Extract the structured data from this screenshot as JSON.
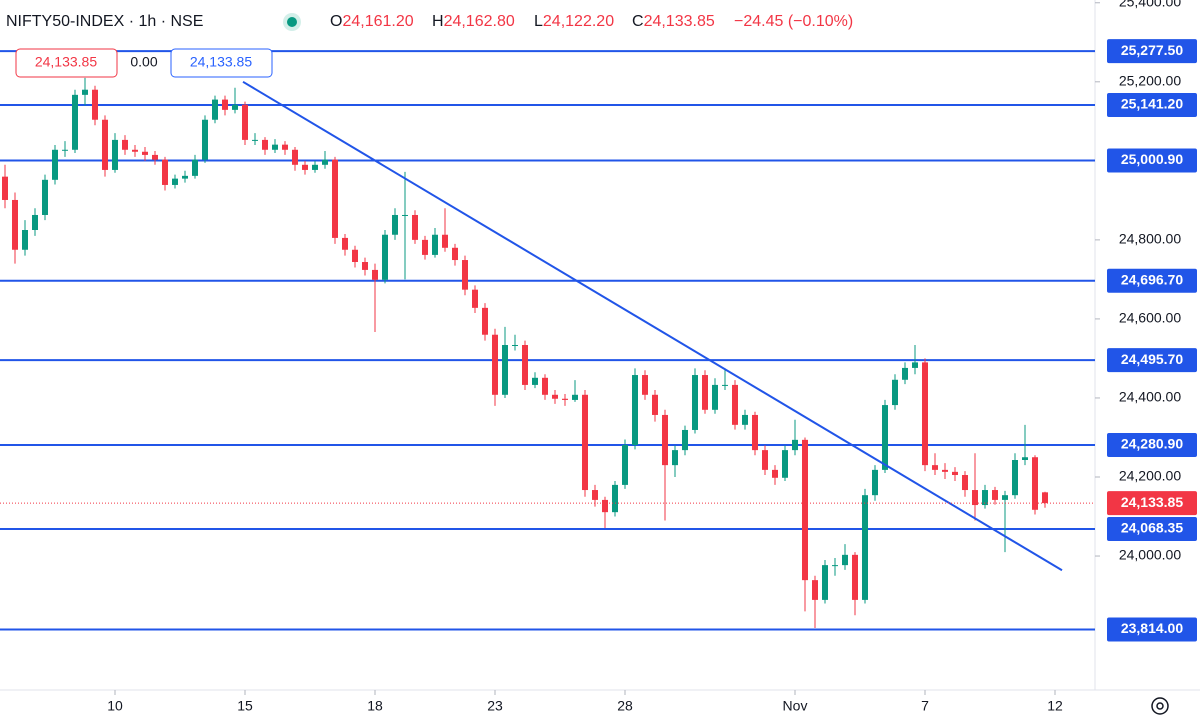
{
  "chart_data": {
    "type": "candlestick",
    "title": "NIFTY50-INDEX · 1h · NSE",
    "ohlc_header": [
      {
        "key": "O",
        "value": "24,161.20"
      },
      {
        "key": "H",
        "value": "24,162.80"
      },
      {
        "key": "L",
        "value": "24,122.20"
      },
      {
        "key": "C",
        "value": "24,133.85"
      }
    ],
    "change": "−24.45 (−0.10%)",
    "order_boxes": [
      "24,133.85",
      "0.00",
      "24,133.85"
    ],
    "up_color": "#089981",
    "down_color": "#f23645",
    "level_color": "#2155e8",
    "xlim": [
      -0.5,
      109
    ],
    "ylim": [
      23661,
      25407
    ],
    "xticks": [
      {
        "value": 11,
        "label": "10"
      },
      {
        "value": 24,
        "label": "15"
      },
      {
        "value": 37,
        "label": "18"
      },
      {
        "value": 49,
        "label": "23"
      },
      {
        "value": 62,
        "label": "28"
      },
      {
        "value": 79,
        "label": "Nov"
      },
      {
        "value": 92,
        "label": "7"
      },
      {
        "value": 105,
        "label": "12"
      }
    ],
    "yticks": [
      {
        "value": 24000,
        "label": "24,000.00"
      },
      {
        "value": 24200,
        "label": "24,200.00"
      },
      {
        "value": 24400,
        "label": "24,400.00"
      },
      {
        "value": 24600,
        "label": "24,600.00"
      },
      {
        "value": 24800,
        "label": "24,800.00"
      },
      {
        "value": 25200,
        "label": "25,200.00"
      },
      {
        "value": 25400,
        "label": "25,400.00"
      }
    ],
    "levels": [
      {
        "value": 25277.5,
        "label": "25,277.50"
      },
      {
        "value": 25141.2,
        "label": "25,141.20"
      },
      {
        "value": 25000.9,
        "label": "25,000.90"
      },
      {
        "value": 24696.7,
        "label": "24,696.70"
      },
      {
        "value": 24495.7,
        "label": "24,495.70"
      },
      {
        "value": 24280.9,
        "label": "24,280.90"
      },
      {
        "value": 24068.35,
        "label": "24,068.35"
      },
      {
        "value": 23814,
        "label": "23,814.00"
      }
    ],
    "last_price": {
      "value": 24133.85,
      "label": "24,133.85"
    },
    "trendline": [
      {
        "x": 23.8,
        "y": 25200
      },
      {
        "x": 105.7,
        "y": 23964
      }
    ],
    "ohlc": [
      [
        24960,
        24990,
        24880,
        24901
      ],
      [
        24901,
        24920,
        24740,
        24775
      ],
      [
        24775,
        24850,
        24760,
        24825
      ],
      [
        24825,
        24880,
        24810,
        24863
      ],
      [
        24863,
        24965,
        24850,
        24952
      ],
      [
        24952,
        25040,
        24940,
        25028
      ],
      [
        25028,
        25050,
        25010,
        25028
      ],
      [
        25028,
        25180,
        25020,
        25167
      ],
      [
        25167,
        25210,
        25140,
        25180
      ],
      [
        25180,
        25190,
        25090,
        25104
      ],
      [
        25104,
        25115,
        24960,
        24977
      ],
      [
        24977,
        25070,
        24970,
        25053
      ],
      [
        25053,
        25065,
        25015,
        25028
      ],
      [
        25028,
        25040,
        25010,
        25023
      ],
      [
        25023,
        25035,
        25000,
        25015
      ],
      [
        25015,
        25025,
        24990,
        25003
      ],
      [
        25003,
        25010,
        24925,
        24939
      ],
      [
        24939,
        24965,
        24930,
        24955
      ],
      [
        24955,
        24975,
        24945,
        24962
      ],
      [
        24962,
        25015,
        24955,
        25003
      ],
      [
        25003,
        25115,
        24995,
        25104
      ],
      [
        25104,
        25165,
        25095,
        25155
      ],
      [
        25155,
        25165,
        25115,
        25129
      ],
      [
        25129,
        25185,
        25120,
        25142
      ],
      [
        25142,
        25150,
        25040,
        25053
      ],
      [
        25053,
        25070,
        25040,
        25053
      ],
      [
        25053,
        25060,
        25015,
        25028
      ],
      [
        25028,
        25055,
        25020,
        25041
      ],
      [
        25041,
        25050,
        25015,
        25028
      ],
      [
        25028,
        25035,
        24975,
        24990
      ],
      [
        24990,
        25000,
        24965,
        24977
      ],
      [
        24977,
        25000,
        24970,
        24990
      ],
      [
        24990,
        25025,
        24980,
        25003
      ],
      [
        25003,
        25010,
        24790,
        24805
      ],
      [
        24805,
        24815,
        24760,
        24775
      ],
      [
        24775,
        24785,
        24730,
        24744
      ],
      [
        24744,
        24755,
        24710,
        24724
      ],
      [
        24724,
        24740,
        24567,
        24699
      ],
      [
        24699,
        24825,
        24690,
        24813
      ],
      [
        24813,
        24880,
        24800,
        24863
      ],
      [
        24863,
        24972,
        24700,
        24863
      ],
      [
        24863,
        24875,
        24790,
        24800
      ],
      [
        24800,
        24810,
        24750,
        24762
      ],
      [
        24762,
        24830,
        24755,
        24813
      ],
      [
        24813,
        24880,
        24770,
        24780
      ],
      [
        24780,
        24790,
        24735,
        24749
      ],
      [
        24749,
        24760,
        24660,
        24674
      ],
      [
        24674,
        24685,
        24615,
        24628
      ],
      [
        24628,
        24640,
        24545,
        24560
      ],
      [
        24560,
        24575,
        24380,
        24408
      ],
      [
        24408,
        24580,
        24400,
        24534
      ],
      [
        24534,
        24560,
        24520,
        24534
      ],
      [
        24534,
        24545,
        24420,
        24433
      ],
      [
        24433,
        24465,
        24425,
        24451
      ],
      [
        24451,
        24460,
        24395,
        24408
      ],
      [
        24408,
        24420,
        24385,
        24398
      ],
      [
        24398,
        24410,
        24380,
        24395
      ],
      [
        24395,
        24445,
        24390,
        24408
      ],
      [
        24408,
        24420,
        24150,
        24167
      ],
      [
        24167,
        24180,
        24125,
        24142
      ],
      [
        24142,
        24150,
        24071,
        24111
      ],
      [
        24111,
        24190,
        24100,
        24180
      ],
      [
        24180,
        24295,
        24170,
        24281
      ],
      [
        24281,
        24475,
        24270,
        24458
      ],
      [
        24458,
        24470,
        24395,
        24408
      ],
      [
        24408,
        24420,
        24340,
        24357
      ],
      [
        24357,
        24370,
        24090,
        24230
      ],
      [
        24230,
        24280,
        24200,
        24268
      ],
      [
        24268,
        24330,
        24255,
        24319
      ],
      [
        24319,
        24475,
        24310,
        24458
      ],
      [
        24458,
        24470,
        24360,
        24370
      ],
      [
        24370,
        24450,
        24360,
        24433
      ],
      [
        24433,
        24475,
        24420,
        24433
      ],
      [
        24433,
        24445,
        24320,
        24332
      ],
      [
        24332,
        24370,
        24320,
        24357
      ],
      [
        24357,
        24365,
        24255,
        24268
      ],
      [
        24268,
        24280,
        24205,
        24218
      ],
      [
        24218,
        24230,
        24180,
        24198
      ],
      [
        24198,
        24280,
        24190,
        24268
      ],
      [
        24268,
        24345,
        24255,
        24294
      ],
      [
        24294,
        24300,
        23860,
        23939
      ],
      [
        23939,
        23950,
        23818,
        23889
      ],
      [
        23889,
        23990,
        23880,
        23977
      ],
      [
        23977,
        23995,
        23950,
        23977
      ],
      [
        23977,
        24030,
        23965,
        24003
      ],
      [
        24003,
        24010,
        23850,
        23889
      ],
      [
        23889,
        24170,
        23880,
        24154
      ],
      [
        24154,
        24230,
        24140,
        24218
      ],
      [
        24218,
        24395,
        24210,
        24382
      ],
      [
        24382,
        24460,
        24370,
        24446
      ],
      [
        24446,
        24490,
        24435,
        24476
      ],
      [
        24476,
        24534,
        24460,
        24490
      ],
      [
        24490,
        24500,
        24215,
        24230
      ],
      [
        24230,
        24260,
        24205,
        24218
      ],
      [
        24218,
        24235,
        24195,
        24213
      ],
      [
        24213,
        24225,
        24190,
        24205
      ],
      [
        24205,
        24215,
        24150,
        24167
      ],
      [
        24167,
        24260,
        24090,
        24129
      ],
      [
        24129,
        24180,
        24120,
        24167
      ],
      [
        24167,
        24175,
        24130,
        24142
      ],
      [
        24142,
        24165,
        24010,
        24154
      ],
      [
        24154,
        24260,
        24145,
        24243
      ],
      [
        24243,
        24332,
        24230,
        24250
      ],
      [
        24250,
        24255,
        24105,
        24117
      ],
      [
        24161.2,
        24162.8,
        24122.2,
        24133.85
      ]
    ]
  }
}
